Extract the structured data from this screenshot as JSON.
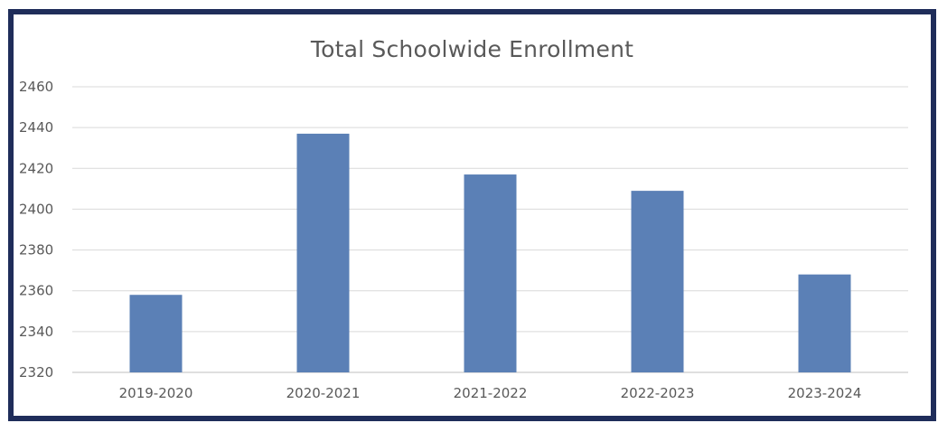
{
  "chart_data": {
    "type": "bar",
    "title": "Total Schoolwide Enrollment",
    "xlabel": "",
    "ylabel": "",
    "categories": [
      "2019-2020",
      "2020-2021",
      "2021-2022",
      "2022-2023",
      "2023-2024"
    ],
    "values": [
      2358,
      2437,
      2417,
      2409,
      2368
    ],
    "ylim": [
      2320,
      2460
    ],
    "yticks": [
      "2460",
      "2440",
      "2420",
      "2400",
      "2380",
      "2360",
      "2340",
      "2320"
    ],
    "ytick_values": [
      2460,
      2440,
      2420,
      2400,
      2380,
      2360,
      2340,
      2320
    ],
    "grid": true,
    "legend": "none",
    "bar_color": "#5b80b6",
    "grid_color": "#d9d9d9",
    "frame_color": "#1f2d5a"
  }
}
